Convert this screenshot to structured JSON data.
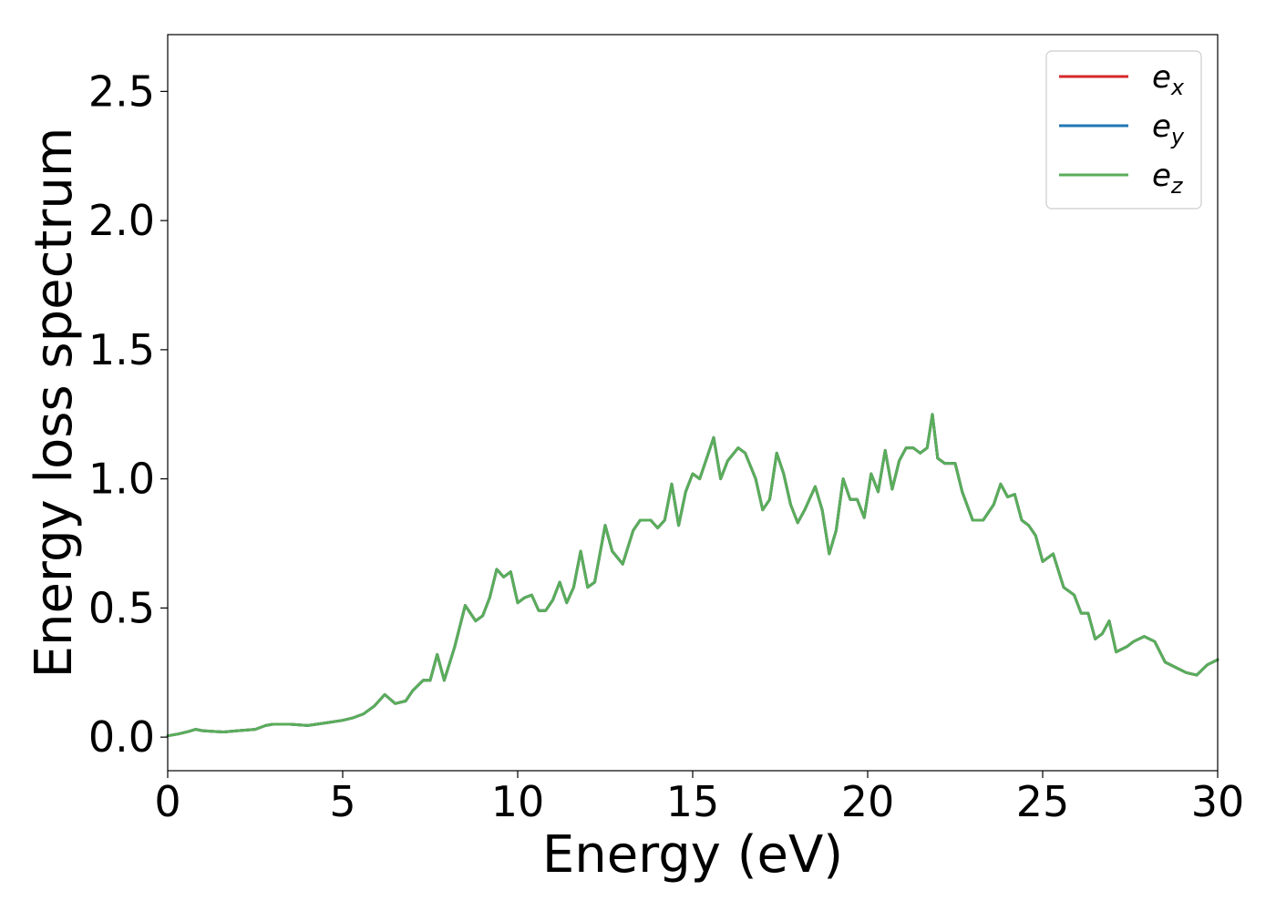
{
  "chart_data": {
    "type": "line",
    "title": "",
    "xlabel": "Energy (eV)",
    "ylabel": "Energy loss spectrum",
    "xlim": [
      0,
      30
    ],
    "ylim": [
      -0.13,
      2.72
    ],
    "xticks": [
      0,
      5,
      10,
      15,
      20,
      25,
      30
    ],
    "yticks": [
      0.0,
      0.5,
      1.0,
      1.5,
      2.0,
      2.5
    ],
    "xtick_labels": [
      "0",
      "5",
      "10",
      "15",
      "20",
      "25",
      "30"
    ],
    "ytick_labels": [
      "0.0",
      "0.5",
      "1.0",
      "1.5",
      "2.0",
      "2.5"
    ],
    "grid": false,
    "legend_position": "top-right",
    "x": [
      0.0,
      0.3,
      0.6,
      0.8,
      1.0,
      1.3,
      1.6,
      2.0,
      2.5,
      2.8,
      3.0,
      3.5,
      4.0,
      4.5,
      5.0,
      5.3,
      5.6,
      5.9,
      6.2,
      6.5,
      6.8,
      7.0,
      7.3,
      7.5,
      7.7,
      7.9,
      8.2,
      8.5,
      8.8,
      9.0,
      9.2,
      9.4,
      9.6,
      9.8,
      10.0,
      10.2,
      10.4,
      10.6,
      10.8,
      11.0,
      11.2,
      11.4,
      11.6,
      11.8,
      12.0,
      12.2,
      12.5,
      12.7,
      13.0,
      13.3,
      13.5,
      13.8,
      14.0,
      14.2,
      14.4,
      14.6,
      14.8,
      15.0,
      15.2,
      15.4,
      15.6,
      15.8,
      16.0,
      16.3,
      16.5,
      16.8,
      17.0,
      17.2,
      17.4,
      17.6,
      17.8,
      18.0,
      18.2,
      18.5,
      18.7,
      18.9,
      19.1,
      19.3,
      19.5,
      19.7,
      19.9,
      20.1,
      20.3,
      20.5,
      20.7,
      20.9,
      21.1,
      21.3,
      21.5,
      21.7,
      21.85,
      22.0,
      22.2,
      22.5,
      22.7,
      23.0,
      23.3,
      23.6,
      23.8,
      24.0,
      24.2,
      24.4,
      24.6,
      24.8,
      25.0,
      25.3,
      25.6,
      25.9,
      26.1,
      26.3,
      26.5,
      26.7,
      26.9,
      27.1,
      27.4,
      27.6,
      27.9,
      28.2,
      28.5,
      28.8,
      29.1,
      29.4,
      29.7,
      30.0
    ],
    "series": [
      {
        "name": "e_x",
        "color": "#d62728",
        "values": [
          0.005,
          0.012,
          0.022,
          0.03,
          0.025,
          0.022,
          0.02,
          0.025,
          0.03,
          0.045,
          0.05,
          0.05,
          0.045,
          0.055,
          0.065,
          0.075,
          0.09,
          0.12,
          0.165,
          0.13,
          0.14,
          0.18,
          0.22,
          0.22,
          0.32,
          0.22,
          0.35,
          0.51,
          0.45,
          0.47,
          0.54,
          0.65,
          0.62,
          0.64,
          0.52,
          0.54,
          0.55,
          0.49,
          0.49,
          0.53,
          0.6,
          0.52,
          0.58,
          0.72,
          0.58,
          0.6,
          0.82,
          0.72,
          0.67,
          0.8,
          0.84,
          0.84,
          0.81,
          0.84,
          0.98,
          0.82,
          0.95,
          1.02,
          1.0,
          1.08,
          1.16,
          1.0,
          1.07,
          1.12,
          1.1,
          1.0,
          0.88,
          0.92,
          1.1,
          1.02,
          0.9,
          0.83,
          0.88,
          0.97,
          0.88,
          0.71,
          0.8,
          1.0,
          0.92,
          0.92,
          0.85,
          1.02,
          0.95,
          1.11,
          0.96,
          1.07,
          1.12,
          1.12,
          1.1,
          1.12,
          1.25,
          1.08,
          1.06,
          1.06,
          0.95,
          0.84,
          0.84,
          0.9,
          0.98,
          0.93,
          0.94,
          0.84,
          0.82,
          0.78,
          0.68,
          0.71,
          0.58,
          0.55,
          0.48,
          0.48,
          0.38,
          0.4,
          0.45,
          0.33,
          0.35,
          0.37,
          0.39,
          0.37,
          0.29,
          0.27,
          0.25,
          0.24,
          0.28,
          0.3
        ]
      },
      {
        "name": "e_y",
        "color": "#1f77b4",
        "values": [
          0.005,
          0.012,
          0.022,
          0.03,
          0.025,
          0.022,
          0.02,
          0.025,
          0.03,
          0.045,
          0.05,
          0.05,
          0.045,
          0.055,
          0.065,
          0.075,
          0.09,
          0.12,
          0.165,
          0.13,
          0.14,
          0.18,
          0.22,
          0.22,
          0.32,
          0.22,
          0.35,
          0.51,
          0.45,
          0.47,
          0.54,
          0.65,
          0.62,
          0.64,
          0.52,
          0.54,
          0.55,
          0.49,
          0.49,
          0.53,
          0.6,
          0.52,
          0.58,
          0.72,
          0.58,
          0.6,
          0.82,
          0.72,
          0.67,
          0.8,
          0.84,
          0.84,
          0.81,
          0.84,
          0.98,
          0.82,
          0.95,
          1.02,
          1.0,
          1.08,
          1.16,
          1.0,
          1.07,
          1.12,
          1.1,
          1.0,
          0.88,
          0.92,
          1.1,
          1.02,
          0.9,
          0.83,
          0.88,
          0.97,
          0.88,
          0.71,
          0.8,
          1.0,
          0.92,
          0.92,
          0.85,
          1.02,
          0.95,
          1.11,
          0.96,
          1.07,
          1.12,
          1.12,
          1.1,
          1.12,
          1.25,
          1.08,
          1.06,
          1.06,
          0.95,
          0.84,
          0.84,
          0.9,
          0.98,
          0.93,
          0.94,
          0.84,
          0.82,
          0.78,
          0.68,
          0.71,
          0.58,
          0.55,
          0.48,
          0.48,
          0.38,
          0.4,
          0.45,
          0.33,
          0.35,
          0.37,
          0.39,
          0.37,
          0.29,
          0.27,
          0.25,
          0.24,
          0.28,
          0.3
        ]
      },
      {
        "name": "e_z",
        "color": "#5aad5a",
        "values": [
          0.005,
          0.012,
          0.022,
          0.03,
          0.025,
          0.022,
          0.02,
          0.025,
          0.03,
          0.045,
          0.05,
          0.05,
          0.045,
          0.055,
          0.065,
          0.075,
          0.09,
          0.12,
          0.165,
          0.13,
          0.14,
          0.18,
          0.22,
          0.22,
          0.32,
          0.22,
          0.35,
          0.51,
          0.45,
          0.47,
          0.54,
          0.65,
          0.62,
          0.64,
          0.52,
          0.54,
          0.55,
          0.49,
          0.49,
          0.53,
          0.6,
          0.52,
          0.58,
          0.72,
          0.58,
          0.6,
          0.82,
          0.72,
          0.67,
          0.8,
          0.84,
          0.84,
          0.81,
          0.84,
          0.98,
          0.82,
          0.95,
          1.02,
          1.0,
          1.08,
          1.16,
          1.0,
          1.07,
          1.12,
          1.1,
          1.0,
          0.88,
          0.92,
          1.1,
          1.02,
          0.9,
          0.83,
          0.88,
          0.97,
          0.88,
          0.71,
          0.8,
          1.0,
          0.92,
          0.92,
          0.85,
          1.02,
          0.95,
          1.11,
          0.96,
          1.07,
          1.12,
          1.12,
          1.1,
          1.12,
          1.25,
          1.08,
          1.06,
          1.06,
          0.95,
          0.84,
          0.84,
          0.9,
          0.98,
          0.93,
          0.94,
          0.84,
          0.82,
          0.78,
          0.68,
          0.71,
          0.58,
          0.55,
          0.48,
          0.48,
          0.38,
          0.4,
          0.45,
          0.33,
          0.35,
          0.37,
          0.39,
          0.37,
          0.29,
          0.27,
          0.25,
          0.24,
          0.28,
          0.3
        ]
      }
    ],
    "legend": [
      {
        "base": "e",
        "sub": "x",
        "color": "#d62728"
      },
      {
        "base": "e",
        "sub": "y",
        "color": "#1f77b4"
      },
      {
        "base": "e",
        "sub": "z",
        "color": "#5aad5a"
      }
    ]
  }
}
